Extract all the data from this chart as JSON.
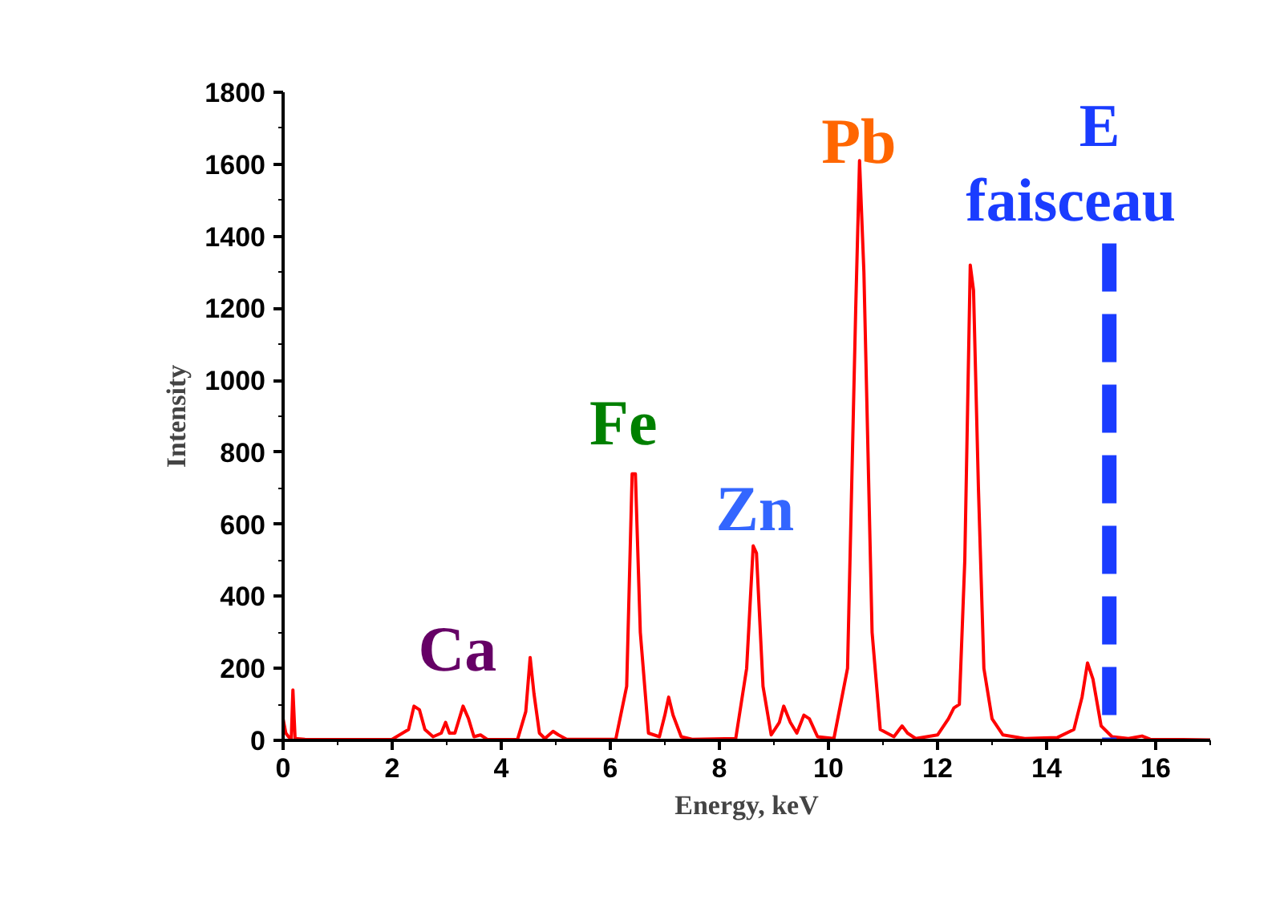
{
  "chart_data": {
    "type": "line",
    "xlabel": "Energy, keV",
    "ylabel": "Intensity",
    "xlim": [
      0,
      17
    ],
    "ylim": [
      0,
      1800
    ],
    "xticks": [
      0,
      2,
      4,
      6,
      8,
      10,
      12,
      14,
      16
    ],
    "yticks": [
      0,
      200,
      400,
      600,
      800,
      1000,
      1200,
      1400,
      1600,
      1800
    ],
    "grid": false,
    "marker": "none",
    "line_style": "solid",
    "series": [
      {
        "color": "#ff0000",
        "x": [
          0.0,
          0.05,
          0.1,
          0.15,
          0.18,
          0.22,
          0.4,
          1.0,
          2.0,
          2.3,
          2.4,
          2.5,
          2.6,
          2.75,
          2.9,
          2.98,
          3.05,
          3.15,
          3.3,
          3.4,
          3.5,
          3.62,
          3.75,
          4.3,
          4.45,
          4.53,
          4.6,
          4.7,
          4.8,
          4.95,
          5.05,
          5.2,
          6.1,
          6.3,
          6.4,
          6.46,
          6.55,
          6.7,
          6.9,
          7.0,
          7.07,
          7.15,
          7.3,
          7.5,
          8.3,
          8.5,
          8.62,
          8.68,
          8.8,
          8.95,
          9.1,
          9.18,
          9.3,
          9.42,
          9.55,
          9.65,
          9.8,
          10.1,
          10.35,
          10.5,
          10.57,
          10.65,
          10.8,
          10.95,
          11.2,
          11.35,
          11.45,
          11.6,
          12.0,
          12.2,
          12.3,
          12.4,
          12.5,
          12.6,
          12.66,
          12.75,
          12.85,
          13.0,
          13.2,
          13.6,
          14.2,
          14.5,
          14.65,
          14.75,
          14.85,
          15.0,
          15.2,
          15.5,
          15.75,
          15.9,
          16.5,
          17.0
        ],
        "values": [
          60,
          20,
          10,
          5,
          140,
          5,
          3,
          2,
          3,
          30,
          95,
          85,
          30,
          10,
          20,
          50,
          20,
          20,
          95,
          60,
          10,
          15,
          2,
          3,
          80,
          230,
          130,
          20,
          5,
          25,
          15,
          3,
          3,
          150,
          740,
          740,
          300,
          20,
          10,
          70,
          120,
          70,
          10,
          3,
          5,
          200,
          540,
          520,
          150,
          15,
          50,
          95,
          50,
          20,
          70,
          60,
          10,
          5,
          200,
          1200,
          1610,
          1300,
          300,
          30,
          10,
          40,
          20,
          5,
          15,
          60,
          90,
          100,
          500,
          1320,
          1250,
          700,
          200,
          60,
          15,
          5,
          8,
          30,
          120,
          215,
          170,
          40,
          10,
          5,
          12,
          3,
          2,
          1
        ]
      }
    ],
    "annotations": [
      "Ca",
      "Fe",
      "Zn",
      "Pb"
    ],
    "ref_lines": [
      {
        "axis": "x",
        "value": 15.15,
        "label": "E\nfaisceau",
        "color": "#1a3cff",
        "line_style": "dashed"
      }
    ]
  }
}
